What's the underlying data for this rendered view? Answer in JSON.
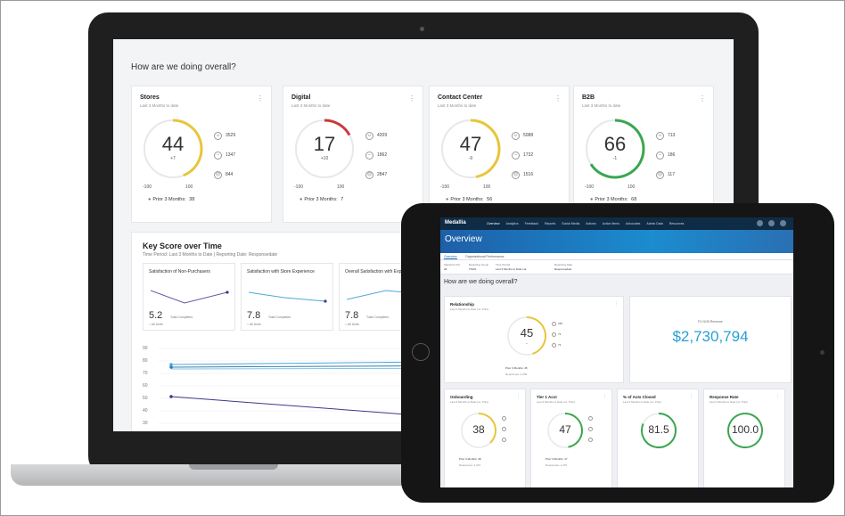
{
  "laptop": {
    "heading": "How are we doing overall?",
    "cards": [
      {
        "title": "Stores",
        "subtitle": "Last 3 Months to date",
        "value": "44",
        "delta": "+7",
        "min": "-100",
        "max": "100",
        "legend": [
          "3529",
          "1347",
          "844"
        ],
        "prior_label": "Prior 3 Months:",
        "prior_value": "38",
        "progress": 0.44,
        "color": "#e8c53a"
      },
      {
        "title": "Digital",
        "subtitle": "Last 3 Months to date",
        "value": "17",
        "delta": "+10",
        "min": "-100",
        "max": "100",
        "legend": [
          "4209",
          "1862",
          "2847"
        ],
        "prior_label": "Prior 3 Months:",
        "prior_value": "7",
        "progress": 0.17,
        "color": "#c93a3a"
      },
      {
        "title": "Contact Center",
        "subtitle": "Last 3 Months to date",
        "value": "47",
        "delta": "-9",
        "min": "-100",
        "max": "100",
        "legend": [
          "5088",
          "1732",
          "1516"
        ],
        "prior_label": "Prior 3 Months:",
        "prior_value": "56",
        "progress": 0.47,
        "color": "#e8c53a"
      },
      {
        "title": "B2B",
        "subtitle": "Last 3 Months to date",
        "value": "66",
        "delta": "-1",
        "min": "-100",
        "max": "100",
        "legend": [
          "713",
          "186",
          "117"
        ],
        "prior_label": "Prior 3 Months:",
        "prior_value": "68",
        "progress": 0.66,
        "color": "#3aa650"
      }
    ],
    "key_score": {
      "title": "Key Score over Time",
      "subtitle": "Time Period: Last 3 Months to Date | Reporting Date: Responsedate",
      "minis": [
        {
          "title": "Satisfaction of Non-Purchasers",
          "value": "5.2",
          "sub": "Total Completes",
          "legend": "All Units"
        },
        {
          "title": "Satisfaction with Store Experience",
          "value": "7.8",
          "sub": "Total Completes",
          "legend": "All Units"
        },
        {
          "title": "Overall Satisfaction with Experience",
          "value": "7.8",
          "sub": "Total Completes",
          "legend": "All Units"
        }
      ],
      "yticks": [
        "90",
        "80",
        "70",
        "60",
        "50",
        "40",
        "30"
      ]
    }
  },
  "tablet": {
    "brand": "Medallia",
    "nav": [
      "Overview",
      "Analytics",
      "Feedback",
      "Reports",
      "Social Media",
      "Actions",
      "Action Items",
      "Advocates",
      "Admin Data",
      "Resources"
    ],
    "page_title": "Overview",
    "tabs": [
      "Overview",
      "Organizational Performance"
    ],
    "filters": [
      {
        "label": "Selected Unit",
        "value": "All"
      },
      {
        "label": "Reporting Group",
        "value": "TOHS"
      },
      {
        "label": "Time Period",
        "value": "Last 3 Months to Date Lat"
      },
      {
        "label": "Reporting Date",
        "value": "Responsedate"
      }
    ],
    "heading": "How are we doing overall?",
    "relationship": {
      "title": "Relationship",
      "subtitle": "Last 3 Months to Date (vs. Prior)",
      "value": "45",
      "delta": "+",
      "prior": "Prior 3 Months: 45",
      "footer": "Responses: 4,256",
      "legend": [
        "235",
        "73",
        "73"
      ],
      "progress": 0.45,
      "color": "#e8c53a"
    },
    "money": {
      "label": "P1 NCB Revenue",
      "value": "$2,730,794"
    },
    "small": [
      {
        "title": "Onboarding",
        "subtitle": "Last 3 Months to Date (vs. Prior)",
        "value": "38",
        "prior": "Prior 3 Months: 38",
        "footer": "Responses: 1,267",
        "legend": [
          "",
          "",
          ""
        ],
        "progress": 0.38,
        "color": "#e8c53a"
      },
      {
        "title": "Tier 1 Acct",
        "subtitle": "Last 3 Months to Date (vs. Prior)",
        "value": "47",
        "prior": "Prior 3 Months: 47",
        "footer": "Responses: 1,297",
        "legend": [
          "",
          "",
          ""
        ],
        "progress": 0.47,
        "color": "#3aa650"
      },
      {
        "title": "% of Acts Closed",
        "subtitle": "Last 3 Months to Date (vs. Prior)",
        "value": "81.5",
        "prior": "",
        "footer": "",
        "legend": [],
        "progress": 0.815,
        "color": "#3aa650"
      },
      {
        "title": "Response Rate",
        "subtitle": "Last 3 Months to Date (vs. Prior)",
        "value": "100.0",
        "prior": "",
        "footer": "",
        "legend": [],
        "progress": 1.0,
        "color": "#3aa650"
      }
    ]
  }
}
